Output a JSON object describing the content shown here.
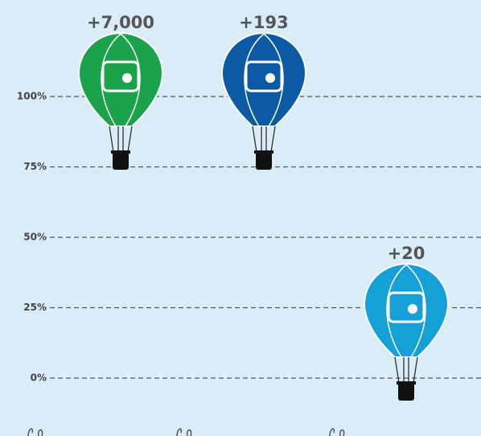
{
  "chart_data": {
    "type": "balloon",
    "annotations": [
      "+7,000",
      "+193",
      "+20"
    ],
    "values": [
      106,
      106,
      24
    ],
    "colors": [
      "#1aa34a",
      "#0c5aa6",
      "#16a0d8"
    ],
    "ylim": [
      0,
      100
    ],
    "yticks": [
      {
        "value": 0,
        "label": "0%"
      },
      {
        "value": 25,
        "label": "25%"
      },
      {
        "value": 50,
        "label": "50%"
      },
      {
        "value": 75,
        "label": "75%"
      },
      {
        "value": 100,
        "label": "100%"
      }
    ],
    "grid": true
  }
}
